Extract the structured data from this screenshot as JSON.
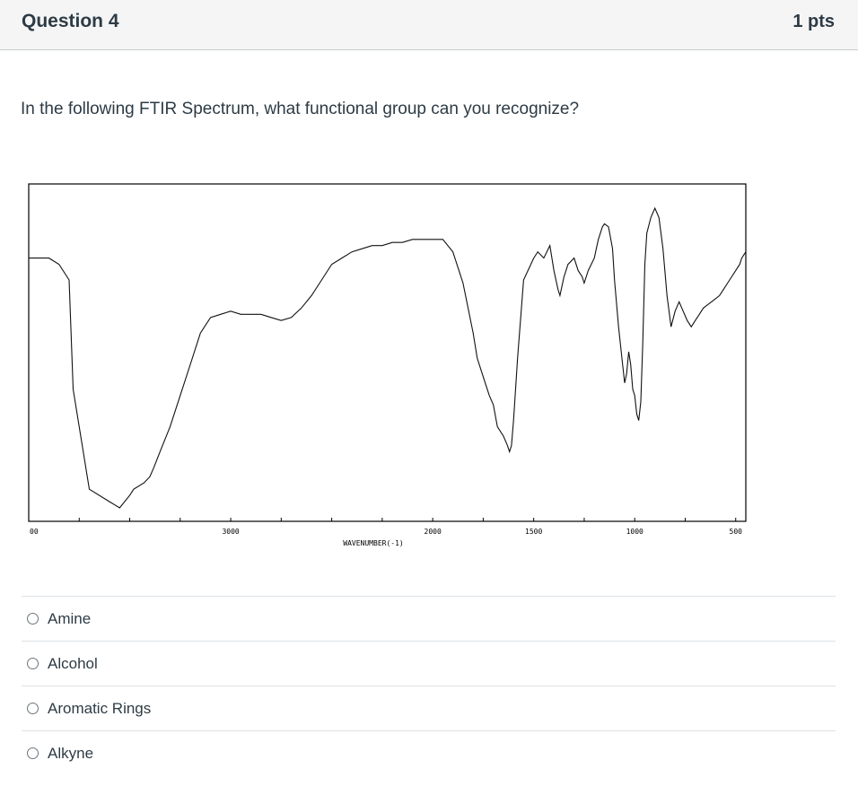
{
  "question": {
    "title": "Question 4",
    "points": "1 pts",
    "text": "In the following FTIR Spectrum, what functional group can you recognize?"
  },
  "chart_data": {
    "type": "line",
    "xlabel": "WAVENUMBER(-1)",
    "x_tick_labels": [
      "00",
      "3000",
      "2000",
      "1500",
      "1000",
      "500"
    ],
    "xlim": [
      4000,
      450
    ],
    "ylim": [
      0,
      100
    ],
    "grid": false,
    "series": [
      {
        "x": [
          4000,
          3900,
          3850,
          3800,
          3780,
          3700,
          3600,
          3550,
          3500,
          3480,
          3430,
          3400,
          3380,
          3350,
          3300,
          3250,
          3200,
          3150,
          3100,
          3050,
          3000,
          2950,
          2900,
          2850,
          2800,
          2750,
          2700,
          2650,
          2600,
          2550,
          2500,
          2450,
          2400,
          2350,
          2300,
          2250,
          2200,
          2150,
          2100,
          2050,
          2000,
          1950,
          1900,
          1850,
          1800,
          1780,
          1750,
          1720,
          1700,
          1680,
          1650,
          1630,
          1620,
          1610,
          1600,
          1580,
          1550,
          1500,
          1480,
          1450,
          1420,
          1400,
          1380,
          1370,
          1350,
          1330,
          1300,
          1280,
          1260,
          1250,
          1230,
          1200,
          1190,
          1180,
          1160,
          1150,
          1130,
          1110,
          1100,
          1080,
          1060,
          1050,
          1040,
          1030,
          1020,
          1010,
          1000,
          990,
          980,
          970,
          960,
          950,
          940,
          920,
          900,
          880,
          860,
          840,
          820,
          800,
          780,
          760,
          740,
          720,
          700,
          680,
          660,
          640,
          620,
          600,
          580,
          560,
          540,
          520,
          500,
          480,
          470,
          460,
          450
        ],
        "y": [
          82,
          82,
          80,
          75,
          40,
          8,
          4,
          2,
          6,
          8,
          10,
          12,
          15,
          20,
          28,
          38,
          48,
          58,
          63,
          64,
          65,
          64,
          64,
          64,
          63,
          62,
          63,
          66,
          70,
          75,
          80,
          82,
          84,
          85,
          86,
          86,
          87,
          87,
          88,
          88,
          88,
          88,
          84,
          74,
          58,
          50,
          44,
          38,
          35,
          28,
          25,
          22,
          20,
          22,
          30,
          50,
          75,
          82,
          84,
          82,
          86,
          78,
          72,
          70,
          76,
          80,
          82,
          78,
          76,
          74,
          78,
          82,
          85,
          88,
          92,
          93,
          92,
          85,
          75,
          60,
          48,
          42,
          45,
          52,
          48,
          40,
          38,
          32,
          30,
          36,
          55,
          80,
          90,
          95,
          98,
          95,
          85,
          70,
          60,
          65,
          68,
          65,
          62,
          60,
          62,
          64,
          66,
          67,
          68,
          69,
          70,
          72,
          74,
          76,
          78,
          80,
          82,
          83,
          84
        ]
      }
    ]
  },
  "answers": [
    {
      "label": "Amine"
    },
    {
      "label": "Alcohol"
    },
    {
      "label": "Aromatic Rings"
    },
    {
      "label": "Alkyne"
    }
  ]
}
